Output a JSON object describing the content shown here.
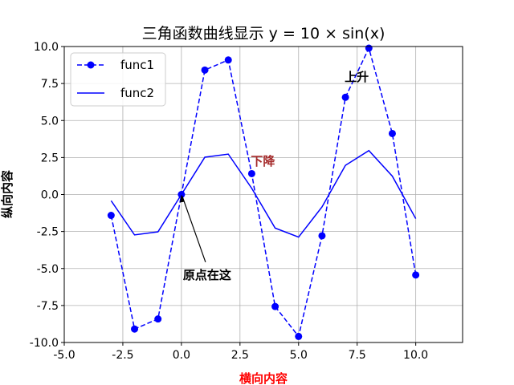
{
  "chart_data": {
    "type": "line",
    "title": "三角函数曲线显示 y = 10 × sin(x)",
    "xlabel": "横向内容",
    "ylabel": "纵向内容",
    "xlim": [
      -5,
      12
    ],
    "ylim": [
      -10,
      10
    ],
    "xticks": [
      "-5.0",
      "-2.5",
      "0.0",
      "2.5",
      "5.0",
      "7.5",
      "10.0"
    ],
    "yticks": [
      "-10.0",
      "-7.5",
      "-5.0",
      "-2.5",
      "0.0",
      "2.5",
      "5.0",
      "7.5",
      "10.0"
    ],
    "grid": true,
    "legend_placement": "top-left",
    "x": [
      -3,
      -2,
      -1,
      0,
      1,
      2,
      3,
      4,
      5,
      6,
      7,
      8,
      9,
      10
    ],
    "series": [
      {
        "name": "func1",
        "style": "dashed with circle markers",
        "color": "#0000ff",
        "values": [
          -1.41,
          -9.09,
          -8.41,
          0,
          8.41,
          9.09,
          1.41,
          -7.57,
          -9.59,
          -2.79,
          6.57,
          9.89,
          4.12,
          -5.44
        ]
      },
      {
        "name": "func2",
        "style": "solid",
        "color": "#0000ff",
        "values": [
          -0.42,
          -2.73,
          -2.52,
          0,
          2.52,
          2.73,
          0.42,
          -2.27,
          -2.88,
          -0.84,
          1.97,
          2.97,
          1.24,
          -1.63
        ]
      }
    ],
    "annotations": [
      {
        "text": "上升",
        "x": 7,
        "y": 8,
        "color": "#000000"
      },
      {
        "text": "下降",
        "x": 3,
        "y": 2.3,
        "color": "#a52a2a"
      },
      {
        "text": "原点在这",
        "x": 0,
        "y": -5,
        "arrow_to": [
          0,
          0
        ],
        "color": "#000000"
      }
    ],
    "xlabel_color": "#ff0000"
  }
}
